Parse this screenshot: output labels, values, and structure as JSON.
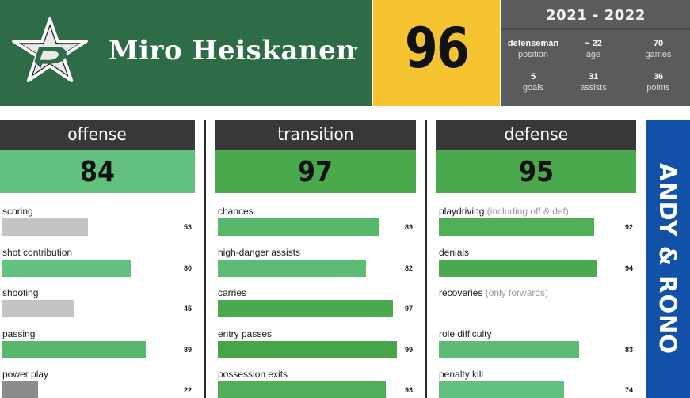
{
  "player": {
    "name": "Miro Heiskanen",
    "overall": "96",
    "season": "2021 - 2022",
    "stats": [
      {
        "value": "defenseman",
        "label": "position"
      },
      {
        "value": "~ 22",
        "label": "age"
      },
      {
        "value": "70",
        "label": "games"
      },
      {
        "value": "5",
        "label": "goals"
      },
      {
        "value": "31",
        "label": "assists"
      },
      {
        "value": "36",
        "label": "points"
      }
    ]
  },
  "team": {
    "logo_icon": "dallas-stars-star-logo",
    "primary": "#2e6b47",
    "accent": "#f5c430"
  },
  "columns": {
    "offense": {
      "title": "offense",
      "score": "84",
      "score_bg": "#63c17f",
      "metrics": [
        {
          "label": "scoring",
          "note": "",
          "value": "53",
          "pct": 0.53,
          "color": "#c4c4c4"
        },
        {
          "label": "shot contribution",
          "note": "",
          "value": "80",
          "pct": 0.8,
          "color": "#63c17f"
        },
        {
          "label": "shooting",
          "note": "",
          "value": "45",
          "pct": 0.45,
          "color": "#c4c4c4"
        },
        {
          "label": "passing",
          "note": "",
          "value": "89",
          "pct": 0.89,
          "color": "#57b86c"
        },
        {
          "label": "power play",
          "note": "",
          "value": "22",
          "pct": 0.22,
          "color": "#8c8c8c"
        }
      ]
    },
    "transition": {
      "title": "transition",
      "score": "97",
      "score_bg": "#4aa84d",
      "metrics": [
        {
          "label": "chances",
          "note": "",
          "value": "89",
          "pct": 0.89,
          "color": "#57b86c"
        },
        {
          "label": "high-danger assists",
          "note": "",
          "value": "82",
          "pct": 0.82,
          "color": "#5cbc73"
        },
        {
          "label": "carries",
          "note": "",
          "value": "97",
          "pct": 0.97,
          "color": "#4aa84d"
        },
        {
          "label": "entry passes",
          "note": "",
          "value": "99",
          "pct": 0.99,
          "color": "#46a449"
        },
        {
          "label": "possession exits",
          "note": "",
          "value": "93",
          "pct": 0.93,
          "color": "#4fae57"
        }
      ]
    },
    "defense": {
      "title": "defense",
      "score": "95",
      "score_bg": "#4aa84d",
      "metrics": [
        {
          "label": "playdriving",
          "note": "(including off & def)",
          "value": "92",
          "pct": 0.92,
          "color": "#4fae57"
        },
        {
          "label": "denials",
          "note": "",
          "value": "94",
          "pct": 0.94,
          "color": "#4aa84d"
        },
        {
          "label": "recoveries",
          "note": "(only forwards)",
          "value": "-",
          "pct": 0,
          "color": "#4aa84d"
        },
        {
          "label": "role difficulty",
          "note": "",
          "value": "83",
          "pct": 0.83,
          "color": "#5cbc73"
        },
        {
          "label": "penalty kill",
          "note": "",
          "value": "74",
          "pct": 0.74,
          "color": "#63c17f"
        }
      ]
    }
  },
  "banner": {
    "text": "ANDY & RONO"
  }
}
